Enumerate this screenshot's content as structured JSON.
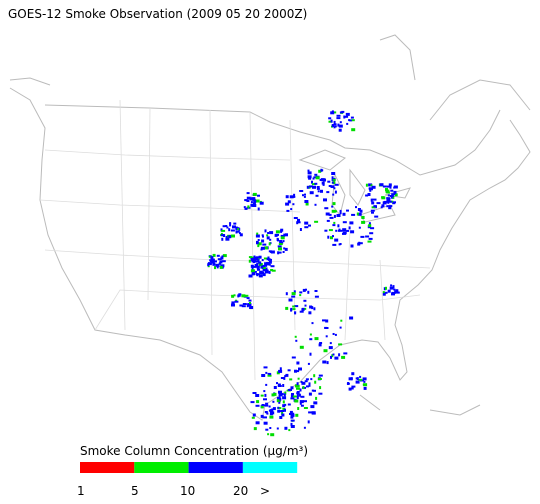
{
  "title": "GOES-12 Smoke Observation (2009 05 20  2000Z)",
  "legend": {
    "title": "Smoke Column Concentration (µg/m³)",
    "colors": [
      "#ff0000",
      "#00ee00",
      "#0000ff",
      "#00ffff"
    ],
    "labels": [
      "1",
      "5",
      "10",
      "20",
      ">"
    ]
  }
}
